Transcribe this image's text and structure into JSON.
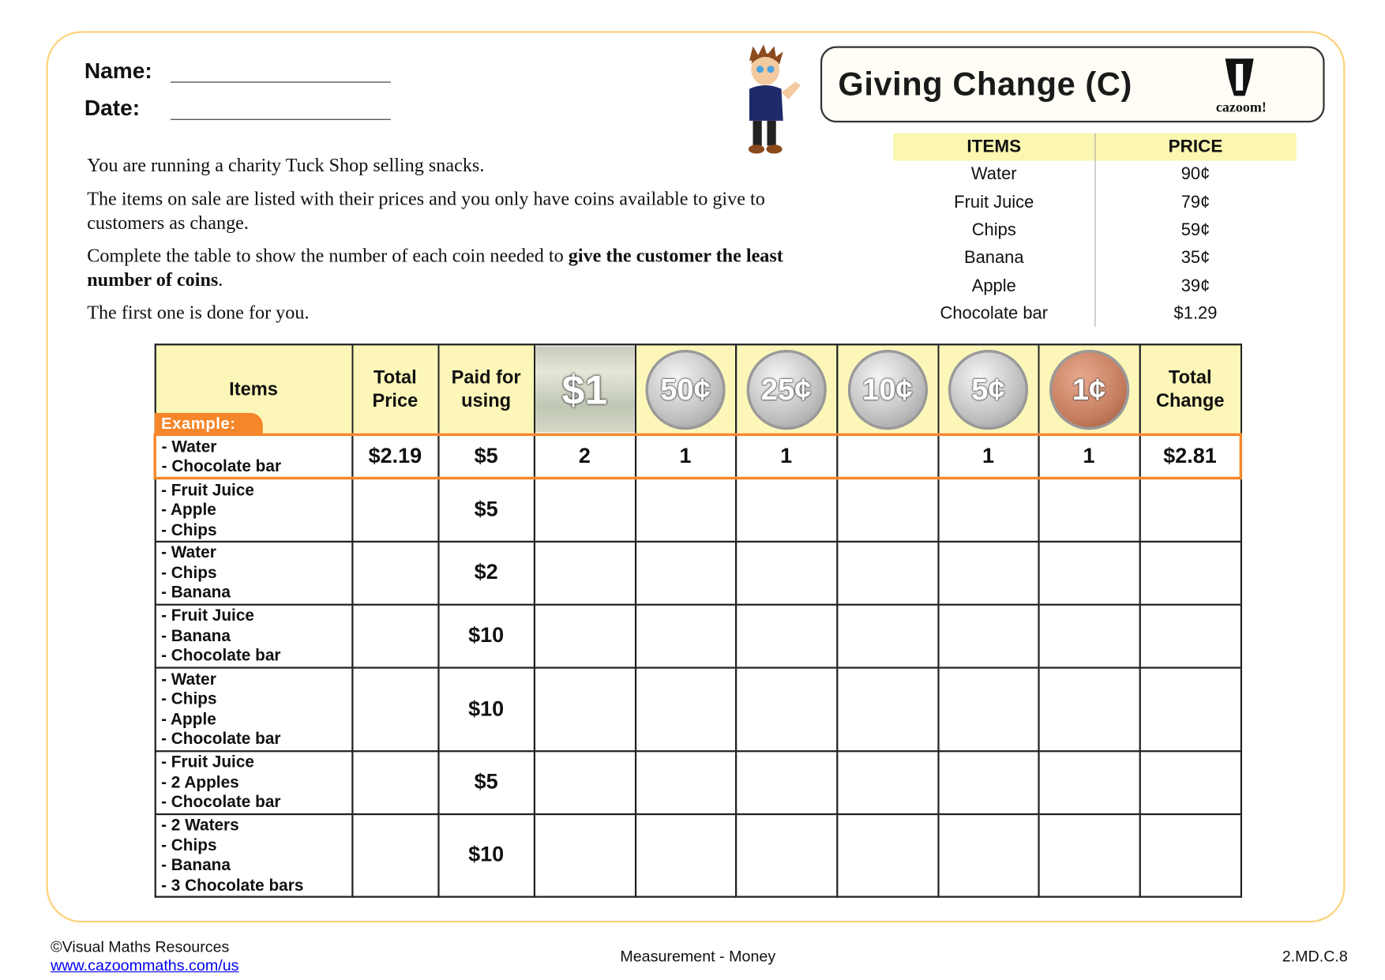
{
  "header": {
    "name_label": "Name:",
    "date_label": "Date:",
    "title": "Giving Change (C)",
    "logo_text": "cazoom!"
  },
  "price_list": {
    "headers": [
      "ITEMS",
      "PRICE"
    ],
    "rows": [
      {
        "item": "Water",
        "price": "90¢"
      },
      {
        "item": "Fruit Juice",
        "price": "79¢"
      },
      {
        "item": "Chips",
        "price": "59¢"
      },
      {
        "item": "Banana",
        "price": "35¢"
      },
      {
        "item": "Apple",
        "price": "39¢"
      },
      {
        "item": "Chocolate bar",
        "price": "$1.29"
      }
    ]
  },
  "instructions": {
    "p1": "You are running a charity Tuck Shop selling snacks.",
    "p2": "The items on sale are listed with their prices and you only have coins available to give to customers as change.",
    "p3_plain": "Complete the table to show the number of each coin needed to ",
    "p3_bold": "give the customer the least number of coins",
    "p3_end": ".",
    "p4": "The first one is done for you."
  },
  "table": {
    "headers": {
      "items": "Items",
      "total_price": "Total Price",
      "paid": "Paid for using",
      "denominations": [
        "$1",
        "50¢",
        "25¢",
        "10¢",
        "5¢",
        "1¢"
      ],
      "total_change": "Total Change"
    },
    "example_label": "Example:",
    "rows": [
      {
        "items": [
          "- Water",
          "- Chocolate bar"
        ],
        "total_price": "$2.19",
        "paid": "$5",
        "counts": [
          "2",
          "1",
          "1",
          "",
          "1",
          "1"
        ],
        "total_change": "$2.81"
      },
      {
        "items": [
          "- Fruit Juice",
          "- Apple",
          "- Chips"
        ],
        "total_price": "",
        "paid": "$5",
        "counts": [
          "",
          "",
          "",
          "",
          "",
          ""
        ],
        "total_change": ""
      },
      {
        "items": [
          "- Water",
          "- Chips",
          "- Banana"
        ],
        "total_price": "",
        "paid": "$2",
        "counts": [
          "",
          "",
          "",
          "",
          "",
          ""
        ],
        "total_change": ""
      },
      {
        "items": [
          "- Fruit Juice",
          "- Banana",
          "- Chocolate bar"
        ],
        "total_price": "",
        "paid": "$10",
        "counts": [
          "",
          "",
          "",
          "",
          "",
          ""
        ],
        "total_change": ""
      },
      {
        "items": [
          "- Water",
          "- Chips",
          "- Apple",
          "- Chocolate bar"
        ],
        "total_price": "",
        "paid": "$10",
        "counts": [
          "",
          "",
          "",
          "",
          "",
          ""
        ],
        "total_change": ""
      },
      {
        "items": [
          "- Fruit Juice",
          "- 2 Apples",
          "- Chocolate bar"
        ],
        "total_price": "",
        "paid": "$5",
        "counts": [
          "",
          "",
          "",
          "",
          "",
          ""
        ],
        "total_change": ""
      },
      {
        "items": [
          "- 2 Waters",
          "- Chips",
          "- Banana",
          "- 3 Chocolate bars"
        ],
        "total_price": "",
        "paid": "$10",
        "counts": [
          "",
          "",
          "",
          "",
          "",
          ""
        ],
        "total_change": ""
      }
    ]
  },
  "footer": {
    "copyright": "©Visual Maths Resources",
    "link": "www.cazoommaths.com/us",
    "topic": "Measurement - Money",
    "standard": "2.MD.C.8"
  },
  "colors": {
    "frame": "#fcd27c",
    "header_fill": "#fcf7b8",
    "example_accent": "#f5862a",
    "link": "#0000ee"
  }
}
